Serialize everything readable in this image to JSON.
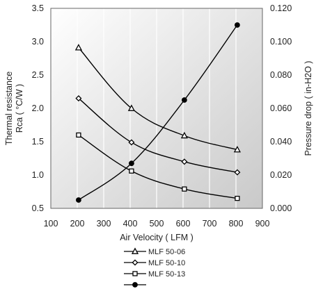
{
  "chart_data": {
    "type": "line",
    "title": "",
    "xlabel": "Air Velocity ( LFM )",
    "ylabel_lines": [
      "Thermal resistance",
      "Rca ( °C/W )"
    ],
    "y2label": "Pressure drop ( in-H2O )",
    "xlim": [
      100,
      900
    ],
    "ylim": [
      0.5,
      3.5
    ],
    "y2lim": [
      0,
      0.12
    ],
    "x_ticks": [
      "100",
      "200",
      "300",
      "400",
      "500",
      "600",
      "700",
      "800",
      "900"
    ],
    "y_ticks": [
      "0.5",
      "1.0",
      "1.5",
      "2.0",
      "2.5",
      "3.0",
      "3.5"
    ],
    "y2_ticks": [
      "0.000",
      "0.020",
      "0.040",
      "0.060",
      "0.080",
      "0.100",
      "0.120"
    ],
    "grid": "vertical",
    "legend_position": "bottom",
    "series": [
      {
        "name": "MLF 50-06",
        "marker": "triangle",
        "axis": "left",
        "x": [
          205,
          405,
          605,
          805
        ],
        "y": [
          2.91,
          2.0,
          1.59,
          1.38
        ]
      },
      {
        "name": "MLF 50-10",
        "marker": "diamond",
        "axis": "left",
        "x": [
          205,
          405,
          605,
          805
        ],
        "y": [
          2.15,
          1.49,
          1.2,
          1.04
        ]
      },
      {
        "name": "MLF 50-13",
        "marker": "square",
        "axis": "left",
        "x": [
          205,
          405,
          605,
          805
        ],
        "y": [
          1.6,
          1.06,
          0.79,
          0.65
        ]
      },
      {
        "name": "",
        "marker": "circle",
        "axis": "right",
        "x": [
          205,
          405,
          605,
          805
        ],
        "y": [
          0.005,
          0.027,
          0.065,
          0.11
        ]
      }
    ]
  }
}
